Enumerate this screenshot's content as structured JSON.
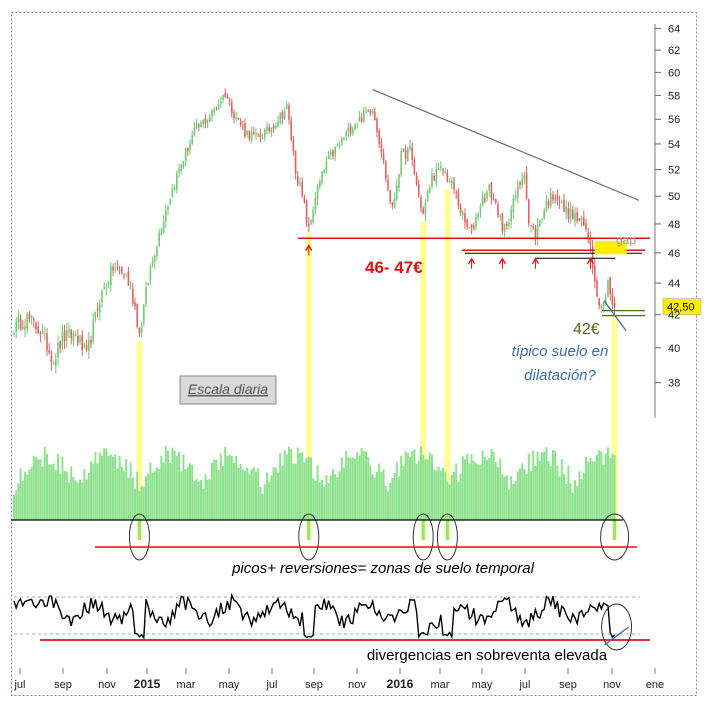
{
  "chart_data": {
    "type": "candlestick",
    "price_axis": {
      "ylim": [
        36.5,
        65
      ],
      "ticks": [
        38,
        40,
        42,
        44,
        46,
        48,
        50,
        52,
        54,
        56,
        58,
        60,
        62,
        64
      ],
      "scale": "log"
    },
    "x_tick_labels": [
      "jul",
      "sep",
      "nov",
      "2015",
      "mar",
      "may",
      "jul",
      "sep",
      "nov",
      "2016",
      "mar",
      "may",
      "jul",
      "sep",
      "nov",
      "ene"
    ],
    "bold_x_labels": [
      "2015",
      "2016"
    ],
    "price_series_keypoints": [
      [
        0,
        41.2
      ],
      [
        6,
        41.8
      ],
      [
        12,
        41.0
      ],
      [
        18,
        39.3
      ],
      [
        22,
        40.6
      ],
      [
        28,
        40.8
      ],
      [
        33,
        39.5
      ],
      [
        39,
        43.0
      ],
      [
        45,
        45.0
      ],
      [
        51,
        44.5
      ],
      [
        55,
        42.5
      ],
      [
        57,
        40.8
      ],
      [
        62,
        45.0
      ],
      [
        68,
        48.5
      ],
      [
        75,
        52.0
      ],
      [
        82,
        55.0
      ],
      [
        90,
        56.5
      ],
      [
        96,
        58.2
      ],
      [
        100,
        56.5
      ],
      [
        105,
        55.0
      ],
      [
        110,
        54.5
      ],
      [
        115,
        55.0
      ],
      [
        120,
        56.0
      ],
      [
        124,
        57.0
      ],
      [
        128,
        52.0
      ],
      [
        132,
        49.2
      ],
      [
        134,
        47.5
      ],
      [
        137,
        50.0
      ],
      [
        142,
        52.5
      ],
      [
        148,
        54.0
      ],
      [
        154,
        55.5
      ],
      [
        160,
        56.5
      ],
      [
        163,
        57.0
      ],
      [
        167,
        53.5
      ],
      [
        170,
        50.5
      ],
      [
        172,
        49.0
      ],
      [
        176,
        53.0
      ],
      [
        180,
        53.5
      ],
      [
        184,
        50.0
      ],
      [
        186,
        48.7
      ],
      [
        190,
        51.5
      ],
      [
        195,
        52.0
      ],
      [
        200,
        50.5
      ],
      [
        205,
        48.0
      ],
      [
        208,
        47.4
      ],
      [
        212,
        49.5
      ],
      [
        216,
        50.5
      ],
      [
        220,
        49.0
      ],
      [
        222,
        47.3
      ],
      [
        226,
        49.0
      ],
      [
        230,
        51.0
      ],
      [
        232,
        52.0
      ],
      [
        234,
        48.0
      ],
      [
        237,
        47.3
      ],
      [
        242,
        49.5
      ],
      [
        246,
        50.2
      ],
      [
        250,
        49.0
      ],
      [
        255,
        48.5
      ],
      [
        259,
        47.8
      ],
      [
        262,
        46.8
      ],
      [
        264,
        44.0
      ],
      [
        266,
        43.0
      ],
      [
        268,
        42.6
      ],
      [
        270,
        44.3
      ],
      [
        272,
        42.4
      ],
      [
        273,
        42.5
      ]
    ],
    "annotations": {
      "support_label": "46- 47€",
      "target_label": "42€",
      "question_text": "típico suelo en dilatación?",
      "gap_label": "gap",
      "scale_label": "Escala diaria",
      "last_price": "42,50",
      "volume_note": "picos+ reversiones= zonas de suelo temporal",
      "oscillator_note": "divergencias en sobreventa elevada"
    },
    "support_band": [
      46.0,
      47.0
    ],
    "downtrend_line": [
      [
        163,
        58.5
      ],
      [
        284,
        49.7
      ]
    ],
    "support_line_level": 47.0,
    "gap_zone": [
      45.9,
      46.8
    ],
    "target_level": 42.0,
    "reversal_points": [
      57,
      134,
      186,
      197,
      273
    ],
    "arrow_points": [
      {
        "x": 134,
        "level": 46.5
      },
      {
        "x": 208,
        "level": 45.6
      },
      {
        "x": 222,
        "level": 45.6
      },
      {
        "x": 237,
        "level": 45.6
      },
      {
        "x": 262,
        "level": 45.6
      }
    ],
    "colors": {
      "up": "#72c872",
      "down": "#e06060",
      "volume": "#8ee28e",
      "support": "#e01010",
      "trendline": "#6a6a6a",
      "highlight": "#ffff80",
      "gap_fill": "#ffee00",
      "oscillator": "#000000",
      "target": "#4a6e1a",
      "question": "#3a6db0"
    }
  }
}
